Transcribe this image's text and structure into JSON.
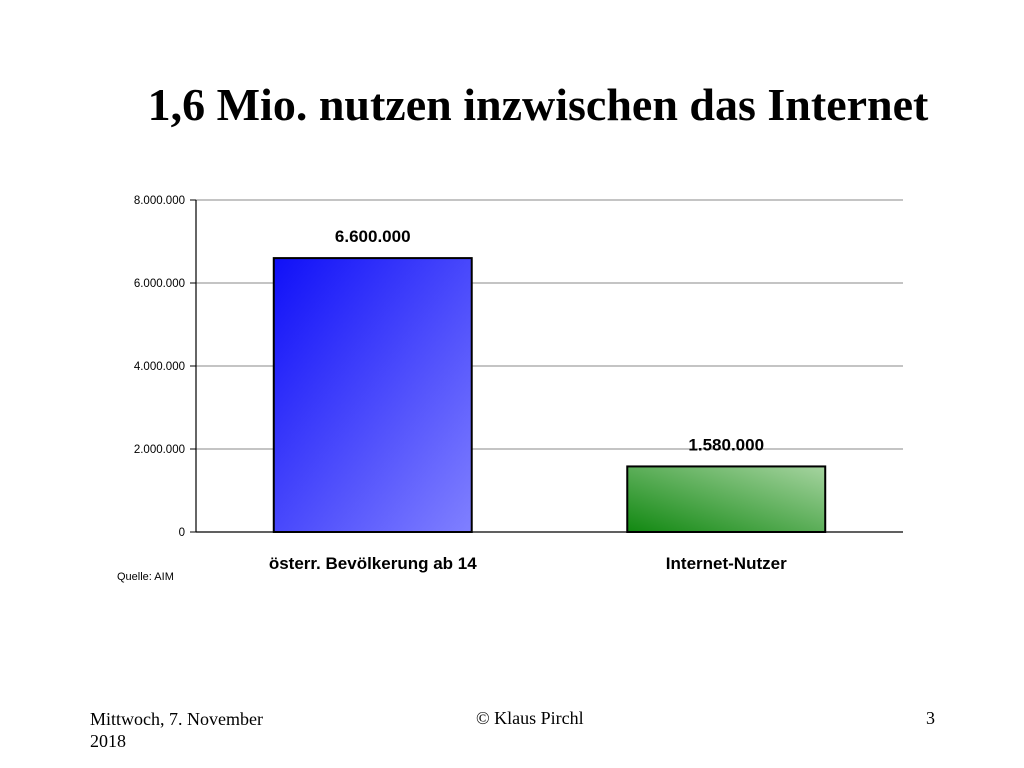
{
  "slide": {
    "title": "1,6 Mio. nutzen inzwischen das Internet",
    "source": "Quelle: AIM",
    "footer_date": "Mittwoch, 7. November 2018",
    "footer_author": "© Klaus Pirchl",
    "page_number": "3"
  },
  "chart_data": {
    "type": "bar",
    "title": "",
    "xlabel": "",
    "ylabel": "",
    "categories": [
      "österr. Bevölkerung ab 14",
      "Internet-Nutzer"
    ],
    "values": [
      6600000,
      1580000
    ],
    "data_labels": [
      "6.600.000",
      "1.580.000"
    ],
    "ylim": [
      0,
      8000000
    ],
    "yticks": [
      0,
      2000000,
      4000000,
      6000000,
      8000000
    ],
    "ytick_labels": [
      "0",
      "2.000.000",
      "4.000.000",
      "6.000.000",
      "8.000.000"
    ],
    "grid": true,
    "legend": "none",
    "colors": [
      {
        "top": "#1010f8",
        "bottom": "#8080ff"
      },
      {
        "top": "#118811",
        "bottom": "#a6d4a0"
      }
    ],
    "bar_outline": "#000000",
    "grid_color": "#8a8a8a"
  }
}
